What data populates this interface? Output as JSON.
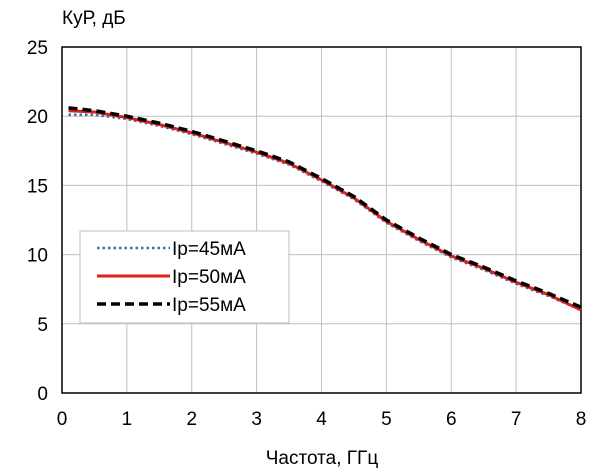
{
  "chart_data": {
    "type": "line",
    "title": "",
    "xlabel": "Частота, ГГц",
    "ylabel": "КуР, дБ",
    "xlim": [
      0,
      8
    ],
    "ylim": [
      0,
      25
    ],
    "x_ticks": [
      "0",
      "1",
      "2",
      "3",
      "4",
      "5",
      "6",
      "7",
      "8"
    ],
    "y_ticks": [
      "0",
      "5",
      "10",
      "15",
      "20",
      "25"
    ],
    "grid": true,
    "legend_position": "left",
    "series": [
      {
        "name": "Ip=45мА",
        "color": "#2e75b6",
        "style": "dotted",
        "x": [
          0.1,
          0.5,
          1,
          1.5,
          2,
          2.5,
          3,
          3.5,
          4,
          4.5,
          5,
          5.5,
          6,
          6.5,
          7,
          7.5,
          8
        ],
        "y": [
          20.1,
          20.1,
          19.8,
          19.3,
          18.7,
          18.0,
          17.3,
          16.5,
          15.3,
          14.0,
          12.3,
          11.0,
          9.8,
          8.9,
          7.9,
          7.0,
          6.0
        ]
      },
      {
        "name": "Ip=50мА",
        "color": "#e0201b",
        "style": "solid",
        "x": [
          0.1,
          0.5,
          1,
          1.5,
          2,
          2.5,
          3,
          3.5,
          4,
          4.5,
          5,
          5.5,
          6,
          6.5,
          7,
          7.5,
          8
        ],
        "y": [
          20.4,
          20.3,
          19.9,
          19.4,
          18.8,
          18.1,
          17.4,
          16.6,
          15.4,
          14.1,
          12.4,
          11.1,
          9.9,
          9.0,
          8.0,
          7.1,
          6.0
        ]
      },
      {
        "name": "Ip=55мА",
        "color": "#000000",
        "style": "dashed",
        "x": [
          0.1,
          0.5,
          1,
          1.5,
          2,
          2.5,
          3,
          3.5,
          4,
          4.5,
          5,
          5.5,
          6,
          6.5,
          7,
          7.5,
          8
        ],
        "y": [
          20.6,
          20.4,
          20.0,
          19.5,
          18.9,
          18.2,
          17.5,
          16.7,
          15.5,
          14.2,
          12.5,
          11.2,
          10.0,
          9.1,
          8.1,
          7.2,
          6.2
        ]
      }
    ]
  }
}
